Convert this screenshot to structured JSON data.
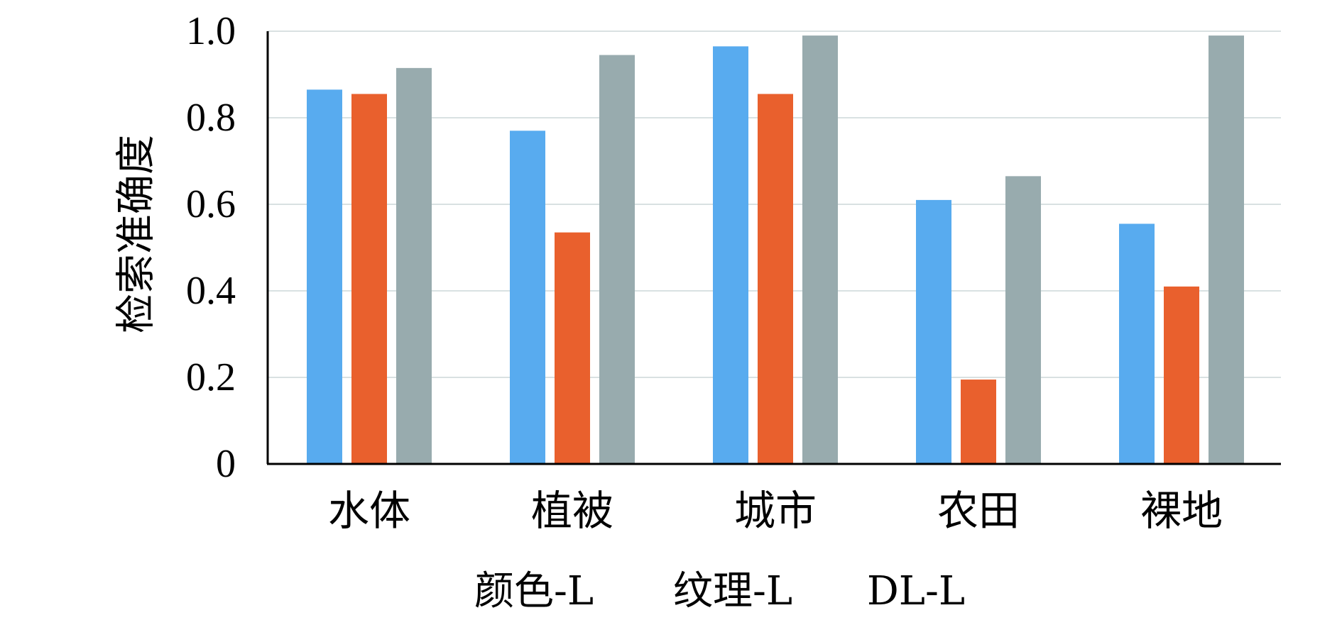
{
  "chart_data": {
    "type": "bar",
    "title": "",
    "xlabel": "",
    "ylabel": "检索准确度",
    "ylim": [
      0,
      1.0
    ],
    "yticks": [
      0,
      0.2,
      0.4,
      0.6,
      0.8,
      1.0
    ],
    "ytick_labels": [
      "0",
      "0.2",
      "0.4",
      "0.6",
      "0.8",
      "1.0"
    ],
    "categories": [
      "水体",
      "植被",
      "城市",
      "农田",
      "裸地"
    ],
    "grid": true,
    "legend_position": "bottom",
    "series": [
      {
        "name": "颜色-L",
        "color": "#58ABEF",
        "values": [
          0.865,
          0.77,
          0.965,
          0.61,
          0.555
        ]
      },
      {
        "name": "纹理-L",
        "color": "#E9602D",
        "values": [
          0.855,
          0.535,
          0.855,
          0.195,
          0.41
        ]
      },
      {
        "name": "DL-L",
        "color": "#98ABAE",
        "values": [
          0.915,
          0.945,
          0.99,
          0.665,
          0.99
        ]
      }
    ]
  }
}
